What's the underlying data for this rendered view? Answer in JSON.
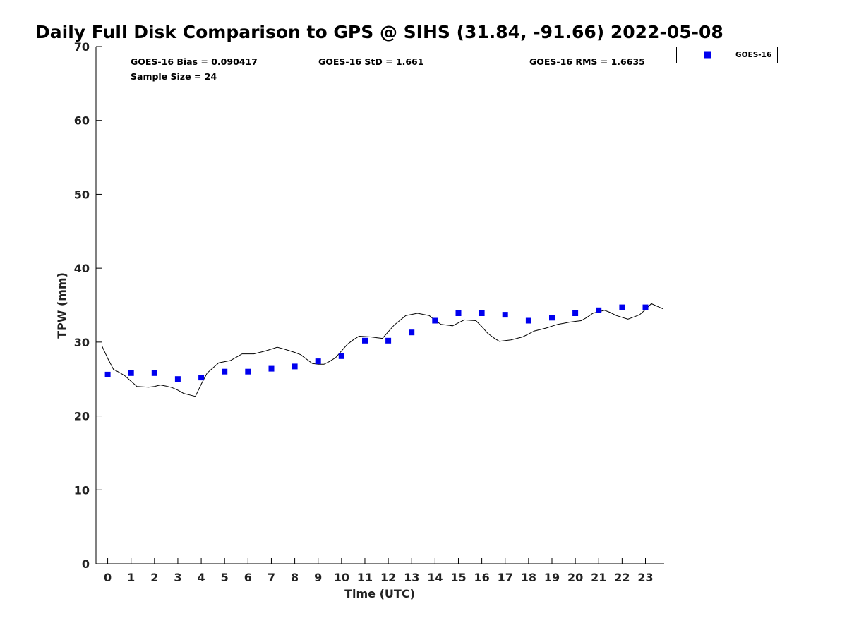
{
  "chart_data": {
    "type": "scatter",
    "title": "Daily Full Disk Comparison to GPS @ SIHS (31.84, -91.66) 2022-05-08",
    "xlabel": "Time (UTC)",
    "ylabel": "TPW (mm)",
    "xlim": [
      -0.5,
      23.8
    ],
    "ylim": [
      0,
      70
    ],
    "x_ticks": [
      0,
      1,
      2,
      3,
      4,
      5,
      6,
      7,
      8,
      9,
      10,
      11,
      12,
      13,
      14,
      15,
      16,
      17,
      18,
      19,
      20,
      21,
      22,
      23
    ],
    "y_ticks": [
      0,
      10,
      20,
      30,
      40,
      50,
      60,
      70
    ],
    "grid": false,
    "legend_position": "top-right",
    "stats": {
      "bias": "GOES-16 Bias = 0.090417",
      "std": "GOES-16 StD = 1.661",
      "rms": "GOES-16 RMS = 1.6635",
      "sample_size": "Sample Size = 24"
    },
    "series": [
      {
        "name": "GOES-16",
        "type": "scatter",
        "marker": "square",
        "color": "#0000ee",
        "x": [
          0,
          1,
          2,
          3,
          4,
          5,
          6,
          7,
          8,
          9,
          10,
          11,
          12,
          13,
          14,
          15,
          16,
          17,
          18,
          19,
          20,
          21,
          22,
          23
        ],
        "y": [
          25.6,
          25.8,
          25.8,
          25.0,
          25.2,
          26.0,
          26.0,
          26.4,
          26.7,
          27.4,
          28.1,
          30.2,
          30.2,
          31.3,
          32.9,
          33.9,
          33.9,
          33.7,
          32.9,
          33.3,
          33.9,
          34.3,
          34.7,
          34.7
        ]
      },
      {
        "type": "line",
        "color": "#000000",
        "x": [
          -0.25,
          0,
          0.25,
          0.5,
          0.75,
          1,
          1.25,
          1.5,
          1.75,
          2,
          2.25,
          2.5,
          2.75,
          3,
          3.25,
          3.5,
          3.75,
          4,
          4.25,
          4.5,
          4.75,
          5,
          5.25,
          5.5,
          5.75,
          6,
          6.25,
          6.5,
          6.75,
          7,
          7.25,
          7.5,
          7.75,
          8,
          8.25,
          8.5,
          8.75,
          9,
          9.25,
          9.5,
          9.75,
          10,
          10.25,
          10.5,
          10.75,
          11,
          11.25,
          11.5,
          11.75,
          12,
          12.25,
          12.5,
          12.75,
          13,
          13.25,
          13.5,
          13.75,
          14,
          14.25,
          14.5,
          14.75,
          15,
          15.25,
          15.5,
          15.75,
          16,
          16.25,
          16.5,
          16.75,
          17,
          17.25,
          17.5,
          17.75,
          18,
          18.25,
          18.5,
          18.75,
          19,
          19.25,
          19.5,
          19.75,
          20,
          20.25,
          20.5,
          20.75,
          21,
          21.25,
          21.5,
          21.75,
          22,
          22.25,
          22.5,
          22.75,
          23,
          23.25,
          23.5,
          23.75
        ],
        "y": [
          29.5,
          27.8,
          26.3,
          25.9,
          25.4,
          24.7,
          24.0,
          23.95,
          23.9,
          24.0,
          24.2,
          24.05,
          23.85,
          23.5,
          23.05,
          22.85,
          22.65,
          24.3,
          25.8,
          26.5,
          27.2,
          27.35,
          27.5,
          27.95,
          28.4,
          28.4,
          28.4,
          28.6,
          28.8,
          29.05,
          29.3,
          29.1,
          28.85,
          28.6,
          28.3,
          27.7,
          27.1,
          27.0,
          27.0,
          27.4,
          27.9,
          28.8,
          29.7,
          30.3,
          30.8,
          30.75,
          30.7,
          30.6,
          30.5,
          31.4,
          32.3,
          32.95,
          33.6,
          33.75,
          33.9,
          33.75,
          33.6,
          32.95,
          32.4,
          32.3,
          32.2,
          32.6,
          33.0,
          32.95,
          32.9,
          32.1,
          31.2,
          30.6,
          30.1,
          30.2,
          30.3,
          30.5,
          30.7,
          31.1,
          31.5,
          31.7,
          31.9,
          32.15,
          32.4,
          32.55,
          32.7,
          32.8,
          32.9,
          33.35,
          33.9,
          34.1,
          34.3,
          34.0,
          33.6,
          33.35,
          33.1,
          33.4,
          33.7,
          34.4,
          35.2,
          34.85,
          34.5
        ]
      }
    ]
  }
}
